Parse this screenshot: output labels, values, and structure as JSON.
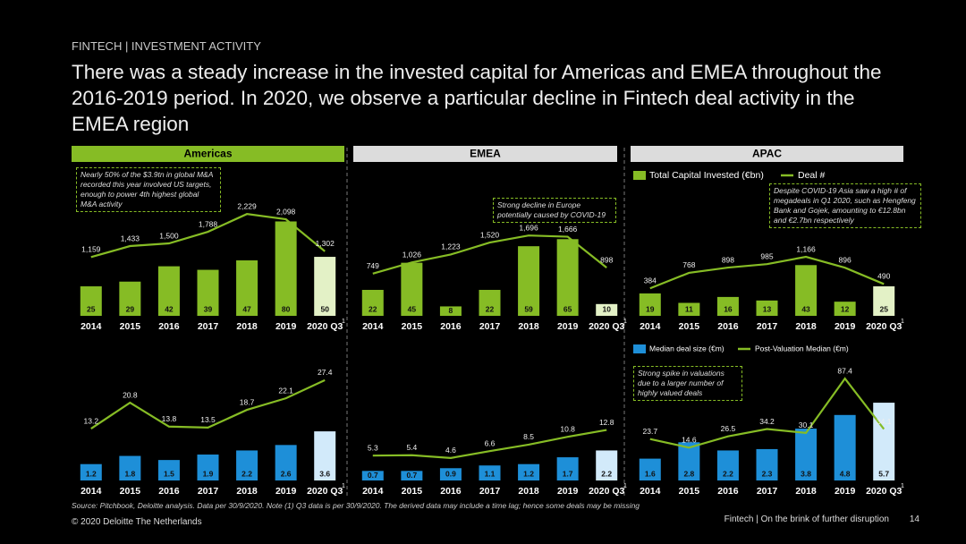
{
  "header": {
    "section": "FINTECH | INVESTMENT ACTIVITY",
    "title": "There was a steady increase in the invested capital for Americas and EMEA throughout the 2016-2019 period. In 2020, we observe a particular decline in Fintech deal activity in the EMEA region"
  },
  "regions": [
    "Americas",
    "EMEA",
    "APAC"
  ],
  "chart_data": [
    {
      "type": "bar_line",
      "categories": [
        "2014",
        "2015",
        "2016",
        "2017",
        "2018",
        "2019",
        "2020 Q3"
      ],
      "note_mark": "1",
      "annotation": "Nearly 50% of the $3.9tn in global M&A recorded this year involved US targets, enough to power 4th highest global M&A activity",
      "ylim": [
        0,
        116
      ],
      "y2lim": [
        -300,
        3100
      ],
      "series": [
        {
          "colors": [
            "#86bc25",
            "#86bc25",
            "#86bc25",
            "#86bc25",
            "#86bc25",
            "#86bc25",
            "#e3f1c6"
          ],
          "values": [
            25,
            29,
            42,
            39,
            47,
            80,
            50
          ]
        },
        {
          "color": "#86bc25",
          "axis": "y2",
          "values": [
            1159,
            1433,
            1500,
            1788,
            2229,
            2098,
            1302
          ],
          "value_labels": [
            "1,159",
            "1,433",
            "1,500",
            "1,788",
            "2,229",
            "2,098",
            "1,302"
          ]
        }
      ]
    },
    {
      "type": "bar_line",
      "categories": [
        "2014",
        "2015",
        "2016",
        "2017",
        "2018",
        "2019",
        "2020 Q3"
      ],
      "note_mark": "1",
      "annotation": "Strong decline in Europe potentially caused by COVID-19",
      "ylim": [
        0,
        116
      ],
      "y2lim": [
        -300,
        3100
      ],
      "series": [
        {
          "colors": [
            "#86bc25",
            "#86bc25",
            "#86bc25",
            "#86bc25",
            "#86bc25",
            "#86bc25",
            "#e3f1c6"
          ],
          "values": [
            22,
            45,
            8,
            22,
            59,
            65,
            10
          ]
        },
        {
          "color": "#86bc25",
          "axis": "y2",
          "values": [
            749,
            1026,
            1223,
            1520,
            1696,
            1666,
            898
          ],
          "value_labels": [
            "749",
            "1,026",
            "1,223",
            "1,520",
            "1,696",
            "1,666",
            "898"
          ]
        }
      ]
    },
    {
      "type": "bar_line",
      "categories": [
        "2014",
        "2015",
        "2016",
        "2017",
        "2018",
        "2019",
        "2020 Q3"
      ],
      "note_mark": "1",
      "annotation": "Despite COVID-19 Asia saw a high # of megadeals in Q1 2020, such as Hengfeng Bank and Gojek, amounting to €12.8bn and €2.7bn respectively",
      "ylim": [
        0,
        116
      ],
      "y2lim": [
        -300,
        3100
      ],
      "series": [
        {
          "name": "Total Capital Invested (€bn)",
          "colors": [
            "#86bc25",
            "#86bc25",
            "#86bc25",
            "#86bc25",
            "#86bc25",
            "#86bc25",
            "#e3f1c6"
          ],
          "values": [
            19,
            11,
            16,
            13,
            43,
            12,
            25
          ]
        },
        {
          "name": "Deal #",
          "color": "#86bc25",
          "axis": "y2",
          "values": [
            384,
            768,
            898,
            985,
            1166,
            896,
            490
          ],
          "value_labels": [
            "384",
            "768",
            "898",
            "985",
            "1,166",
            "896",
            "490"
          ]
        }
      ]
    },
    {
      "type": "bar_line",
      "categories": [
        "2014",
        "2015",
        "2016",
        "2017",
        "2018",
        "2019",
        "2020 Q3"
      ],
      "note_mark": "1",
      "ylim": [
        0,
        8
      ],
      "y2lim": [
        -2,
        30
      ],
      "series": [
        {
          "colors": [
            "#1e8fd8",
            "#1e8fd8",
            "#1e8fd8",
            "#1e8fd8",
            "#1e8fd8",
            "#1e8fd8",
            "#d2eafa"
          ],
          "values": [
            1.2,
            1.8,
            1.5,
            1.9,
            2.2,
            2.6,
            3.6
          ]
        },
        {
          "color": "#86bc25",
          "axis": "y2",
          "values": [
            13.2,
            20.8,
            13.8,
            13.5,
            18.7,
            22.1,
            27.4
          ]
        }
      ]
    },
    {
      "type": "bar_line",
      "categories": [
        "2014",
        "2015",
        "2016",
        "2017",
        "2018",
        "2019",
        "2020 Q3"
      ],
      "note_mark": "1",
      "ylim": [
        0,
        8
      ],
      "y2lim": [
        -2,
        30
      ],
      "series": [
        {
          "colors": [
            "#1e8fd8",
            "#1e8fd8",
            "#1e8fd8",
            "#1e8fd8",
            "#1e8fd8",
            "#1e8fd8",
            "#d2eafa"
          ],
          "values": [
            0.7,
            0.7,
            0.9,
            1.1,
            1.2,
            1.7,
            2.2
          ]
        },
        {
          "color": "#86bc25",
          "axis": "y2",
          "values": [
            5.3,
            5.4,
            4.6,
            6.6,
            8.5,
            10.8,
            12.8
          ]
        }
      ]
    },
    {
      "type": "bar_line",
      "categories": [
        "2014",
        "2015",
        "2016",
        "2017",
        "2018",
        "2019",
        "2020 Q3"
      ],
      "note_mark": "1",
      "annotation": "Strong spike in valuations due to a larger number of highly valued deals",
      "ylim": [
        0,
        8
      ],
      "y2lim": [
        -20,
        95
      ],
      "series": [
        {
          "name": "Median deal size (€m)",
          "colors": [
            "#1e8fd8",
            "#1e8fd8",
            "#1e8fd8",
            "#1e8fd8",
            "#1e8fd8",
            "#1e8fd8",
            "#d2eafa"
          ],
          "values": [
            1.6,
            2.8,
            2.2,
            2.3,
            3.8,
            4.8,
            5.7
          ]
        },
        {
          "name": "Post-Valuation Median (€m)",
          "color": "#86bc25",
          "axis": "y2",
          "values": [
            23.7,
            14.6,
            26.5,
            34.2,
            30.1,
            87.4,
            34.1
          ]
        }
      ]
    }
  ],
  "footer": {
    "source": "Source: Pitchbook, Deloitte analysis. Data per 30/9/2020. Note (1) Q3 data is per 30/9/2020. The derived data may include a time lag; hence some deals may be missing",
    "copyright": "© 2020 Deloitte The Netherlands",
    "deck": "Fintech | On the brink of further disruption",
    "page": "14"
  }
}
